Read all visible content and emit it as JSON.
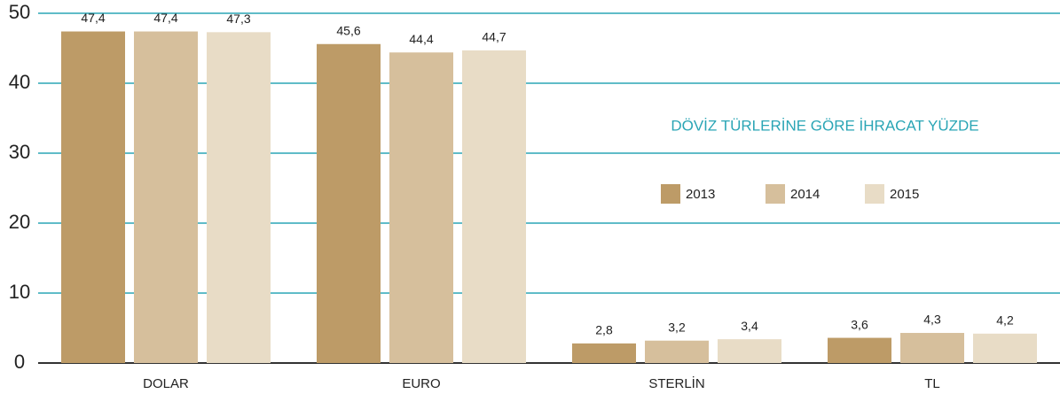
{
  "chart_data": {
    "type": "bar",
    "title": "DÖVİZ TÜRLERİNE GÖRE İHRACAT YÜZDE",
    "categories": [
      "DOLAR",
      "EURO",
      "STERLİN",
      "TL"
    ],
    "series": [
      {
        "name": "2013",
        "color": "#bd9b67",
        "values": [
          47.4,
          45.6,
          2.8,
          3.6
        ],
        "value_labels": [
          "47,4",
          "45,6",
          "2,8",
          "3,6"
        ]
      },
      {
        "name": "2014",
        "color": "#d6bf9c",
        "values": [
          47.4,
          44.4,
          3.2,
          4.3
        ],
        "value_labels": [
          "47,4",
          "44,4",
          "3,2",
          "4,3"
        ]
      },
      {
        "name": "2015",
        "color": "#e8dcc6",
        "values": [
          47.3,
          44.7,
          3.4,
          4.2
        ],
        "value_labels": [
          "47,3",
          "44,7",
          "3,4",
          "4,2"
        ]
      }
    ],
    "ylim": [
      0,
      50
    ],
    "yticks": [
      0,
      10,
      20,
      30,
      40,
      50
    ],
    "grid": true
  }
}
